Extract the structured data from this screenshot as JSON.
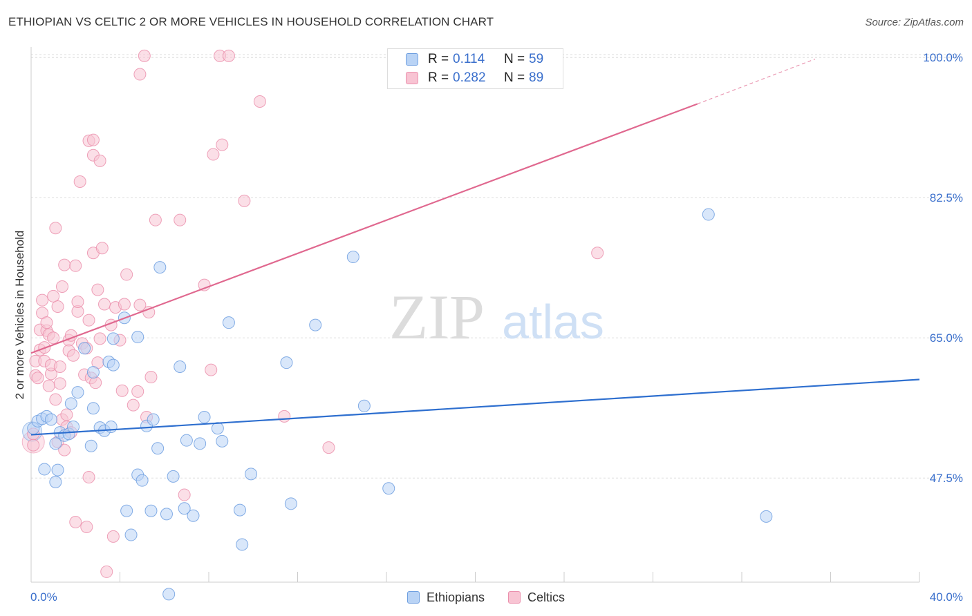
{
  "header": {
    "title": "ETHIOPIAN VS CELTIC 2 OR MORE VEHICLES IN HOUSEHOLD CORRELATION CHART",
    "source": "Source: ZipAtlas.com"
  },
  "watermark": {
    "zip": "ZIP",
    "atlas": "atlas"
  },
  "colors": {
    "ethiopians_fill": "#b9d3f5",
    "ethiopians_stroke": "#6f9fe0",
    "ethiopians_line": "#2e6fcf",
    "celtics_fill": "#f8c4d3",
    "celtics_stroke": "#eb90ad",
    "celtics_line": "#e0688f",
    "axis_label": "#3a6fcc",
    "grid": "#dddddd"
  },
  "legend_stats": {
    "ethiopians": {
      "r_label": "R =",
      "r_value": "0.114",
      "n_label": "N =",
      "n_value": "59"
    },
    "celtics": {
      "r_label": "R =",
      "r_value": "0.282",
      "n_label": "N =",
      "n_value": "89"
    }
  },
  "legend": {
    "ethiopians": "Ethiopians",
    "celtics": "Celtics"
  },
  "chart_data": {
    "type": "scatter",
    "title": "ETHIOPIAN VS CELTIC 2 OR MORE VEHICLES IN HOUSEHOLD CORRELATION CHART",
    "xlabel": "",
    "ylabel": "2 or more Vehicles in Household",
    "xlim": [
      0,
      40
    ],
    "ylim": [
      34.5,
      102
    ],
    "x_tick_labels": [
      "0.0%",
      "40.0%"
    ],
    "y_ticks": [
      47.5,
      65.0,
      82.5,
      100.0
    ],
    "y_tick_labels": [
      "47.5%",
      "65.0%",
      "82.5%",
      "100.0%"
    ],
    "grid": true,
    "series": [
      {
        "name": "Ethiopians",
        "r": 0.114,
        "n": 59,
        "trend": {
          "x": [
            0,
            40
          ],
          "y": [
            52.9,
            59.8
          ]
        },
        "points": [
          [
            0.1,
            53.7
          ],
          [
            0.3,
            54.6
          ],
          [
            0.5,
            54.9
          ],
          [
            0.7,
            55.2
          ],
          [
            0.9,
            54.8
          ],
          [
            1.1,
            51.8
          ],
          [
            1.3,
            53.2
          ],
          [
            1.5,
            52.8
          ],
          [
            1.7,
            53.0
          ],
          [
            1.9,
            53.9
          ],
          [
            0.6,
            48.6
          ],
          [
            1.2,
            48.5
          ],
          [
            1.1,
            47.0
          ],
          [
            1.8,
            56.8
          ],
          [
            2.1,
            58.2
          ],
          [
            2.4,
            63.7
          ],
          [
            2.8,
            60.7
          ],
          [
            2.8,
            56.2
          ],
          [
            3.1,
            53.8
          ],
          [
            3.3,
            53.4
          ],
          [
            2.7,
            51.5
          ],
          [
            3.6,
            53.9
          ],
          [
            3.5,
            62.0
          ],
          [
            3.7,
            61.6
          ],
          [
            3.7,
            64.9
          ],
          [
            4.2,
            67.5
          ],
          [
            4.3,
            43.4
          ],
          [
            4.5,
            40.4
          ],
          [
            4.8,
            65.1
          ],
          [
            4.8,
            47.9
          ],
          [
            5.0,
            47.2
          ],
          [
            5.2,
            54.0
          ],
          [
            5.4,
            43.4
          ],
          [
            5.5,
            54.8
          ],
          [
            5.7,
            51.2
          ],
          [
            5.8,
            73.8
          ],
          [
            6.1,
            43.0
          ],
          [
            6.4,
            47.7
          ],
          [
            6.7,
            61.4
          ],
          [
            6.9,
            43.7
          ],
          [
            7.3,
            42.8
          ],
          [
            7.6,
            51.8
          ],
          [
            7.0,
            52.2
          ],
          [
            7.8,
            55.1
          ],
          [
            8.4,
            53.7
          ],
          [
            8.6,
            52.1
          ],
          [
            8.9,
            66.9
          ],
          [
            9.4,
            43.5
          ],
          [
            9.5,
            39.2
          ],
          [
            9.9,
            48.0
          ],
          [
            11.5,
            61.9
          ],
          [
            11.7,
            44.3
          ],
          [
            12.8,
            66.6
          ],
          [
            14.5,
            75.1
          ],
          [
            15.0,
            56.5
          ],
          [
            16.1,
            46.2
          ],
          [
            30.5,
            80.4
          ],
          [
            33.1,
            42.7
          ],
          [
            6.2,
            33.0
          ]
        ]
      },
      {
        "name": "Celtics",
        "r": 0.282,
        "n": 89,
        "trend": {
          "x": [
            0,
            30
          ],
          "y": [
            63.1,
            94.2
          ]
        },
        "trend_dashed": {
          "x": [
            30,
            35.3
          ],
          "y": [
            94.2,
            99.8
          ]
        },
        "points": [
          [
            0.1,
            53.0
          ],
          [
            0.1,
            51.6
          ],
          [
            0.2,
            60.3
          ],
          [
            0.2,
            62.1
          ],
          [
            0.3,
            60.0
          ],
          [
            0.4,
            63.5
          ],
          [
            0.4,
            66.0
          ],
          [
            0.5,
            68.1
          ],
          [
            0.5,
            69.7
          ],
          [
            0.6,
            63.8
          ],
          [
            0.6,
            62.1
          ],
          [
            0.7,
            65.9
          ],
          [
            0.7,
            66.9
          ],
          [
            0.8,
            65.4
          ],
          [
            0.8,
            59.0
          ],
          [
            0.9,
            60.5
          ],
          [
            0.9,
            61.6
          ],
          [
            1.0,
            65.0
          ],
          [
            1.0,
            70.2
          ],
          [
            1.1,
            57.3
          ],
          [
            1.1,
            78.7
          ],
          [
            1.2,
            68.9
          ],
          [
            1.2,
            52.0
          ],
          [
            1.3,
            59.3
          ],
          [
            1.3,
            61.4
          ],
          [
            1.4,
            71.4
          ],
          [
            1.4,
            54.8
          ],
          [
            1.5,
            51.0
          ],
          [
            1.5,
            74.1
          ],
          [
            1.6,
            55.4
          ],
          [
            1.6,
            53.9
          ],
          [
            1.7,
            64.7
          ],
          [
            1.7,
            63.4
          ],
          [
            1.8,
            65.3
          ],
          [
            1.8,
            53.2
          ],
          [
            1.9,
            62.8
          ],
          [
            2.0,
            42.0
          ],
          [
            2.0,
            74.0
          ],
          [
            2.1,
            68.3
          ],
          [
            2.1,
            69.5
          ],
          [
            2.2,
            84.5
          ],
          [
            2.3,
            64.3
          ],
          [
            2.4,
            60.4
          ],
          [
            2.5,
            41.4
          ],
          [
            2.5,
            63.7
          ],
          [
            2.6,
            47.6
          ],
          [
            2.6,
            89.6
          ],
          [
            2.6,
            67.2
          ],
          [
            2.7,
            60.0
          ],
          [
            2.8,
            75.6
          ],
          [
            2.8,
            87.8
          ],
          [
            2.8,
            89.7
          ],
          [
            2.9,
            59.4
          ],
          [
            3.0,
            61.9
          ],
          [
            3.0,
            71.0
          ],
          [
            3.1,
            64.9
          ],
          [
            3.1,
            87.1
          ],
          [
            3.2,
            76.2
          ],
          [
            3.3,
            69.2
          ],
          [
            3.4,
            35.8
          ],
          [
            3.6,
            66.6
          ],
          [
            3.7,
            40.2
          ],
          [
            3.8,
            68.8
          ],
          [
            4.0,
            64.7
          ],
          [
            4.1,
            58.4
          ],
          [
            4.2,
            69.2
          ],
          [
            4.3,
            72.9
          ],
          [
            4.6,
            56.6
          ],
          [
            4.8,
            58.3
          ],
          [
            4.9,
            69.1
          ],
          [
            4.9,
            97.9
          ],
          [
            5.1,
            100.2
          ],
          [
            5.3,
            68.2
          ],
          [
            5.4,
            60.1
          ],
          [
            5.6,
            79.7
          ],
          [
            6.7,
            79.7
          ],
          [
            6.9,
            45.4
          ],
          [
            7.8,
            71.6
          ],
          [
            8.1,
            61.0
          ],
          [
            8.2,
            87.9
          ],
          [
            8.5,
            100.2
          ],
          [
            8.6,
            89.1
          ],
          [
            8.9,
            100.2
          ],
          [
            9.6,
            82.1
          ],
          [
            10.3,
            94.5
          ],
          [
            11.4,
            55.2
          ],
          [
            13.4,
            51.3
          ],
          [
            25.5,
            75.6
          ],
          [
            5.2,
            55.1
          ]
        ]
      }
    ]
  }
}
